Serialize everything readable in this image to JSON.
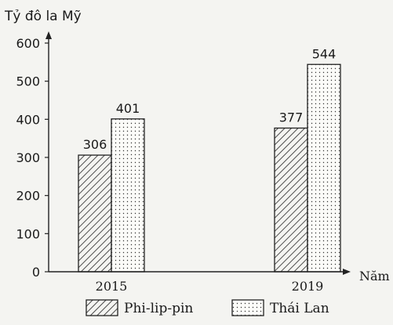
{
  "chart_data": {
    "type": "bar",
    "ylabel": "Tỷ đô la Mỹ",
    "xlabel": "Năm",
    "categories": [
      "2015",
      "2019"
    ],
    "ylim": [
      0,
      600
    ],
    "yticks": [
      0,
      100,
      200,
      300,
      400,
      500,
      600
    ],
    "grid": false,
    "legend_position": "bottom",
    "series": [
      {
        "name": "Phi-lip-pin",
        "values": [
          306,
          377
        ],
        "pattern": "diagonal-hatch"
      },
      {
        "name": "Thái Lan",
        "values": [
          401,
          544
        ],
        "pattern": "dots"
      }
    ]
  }
}
